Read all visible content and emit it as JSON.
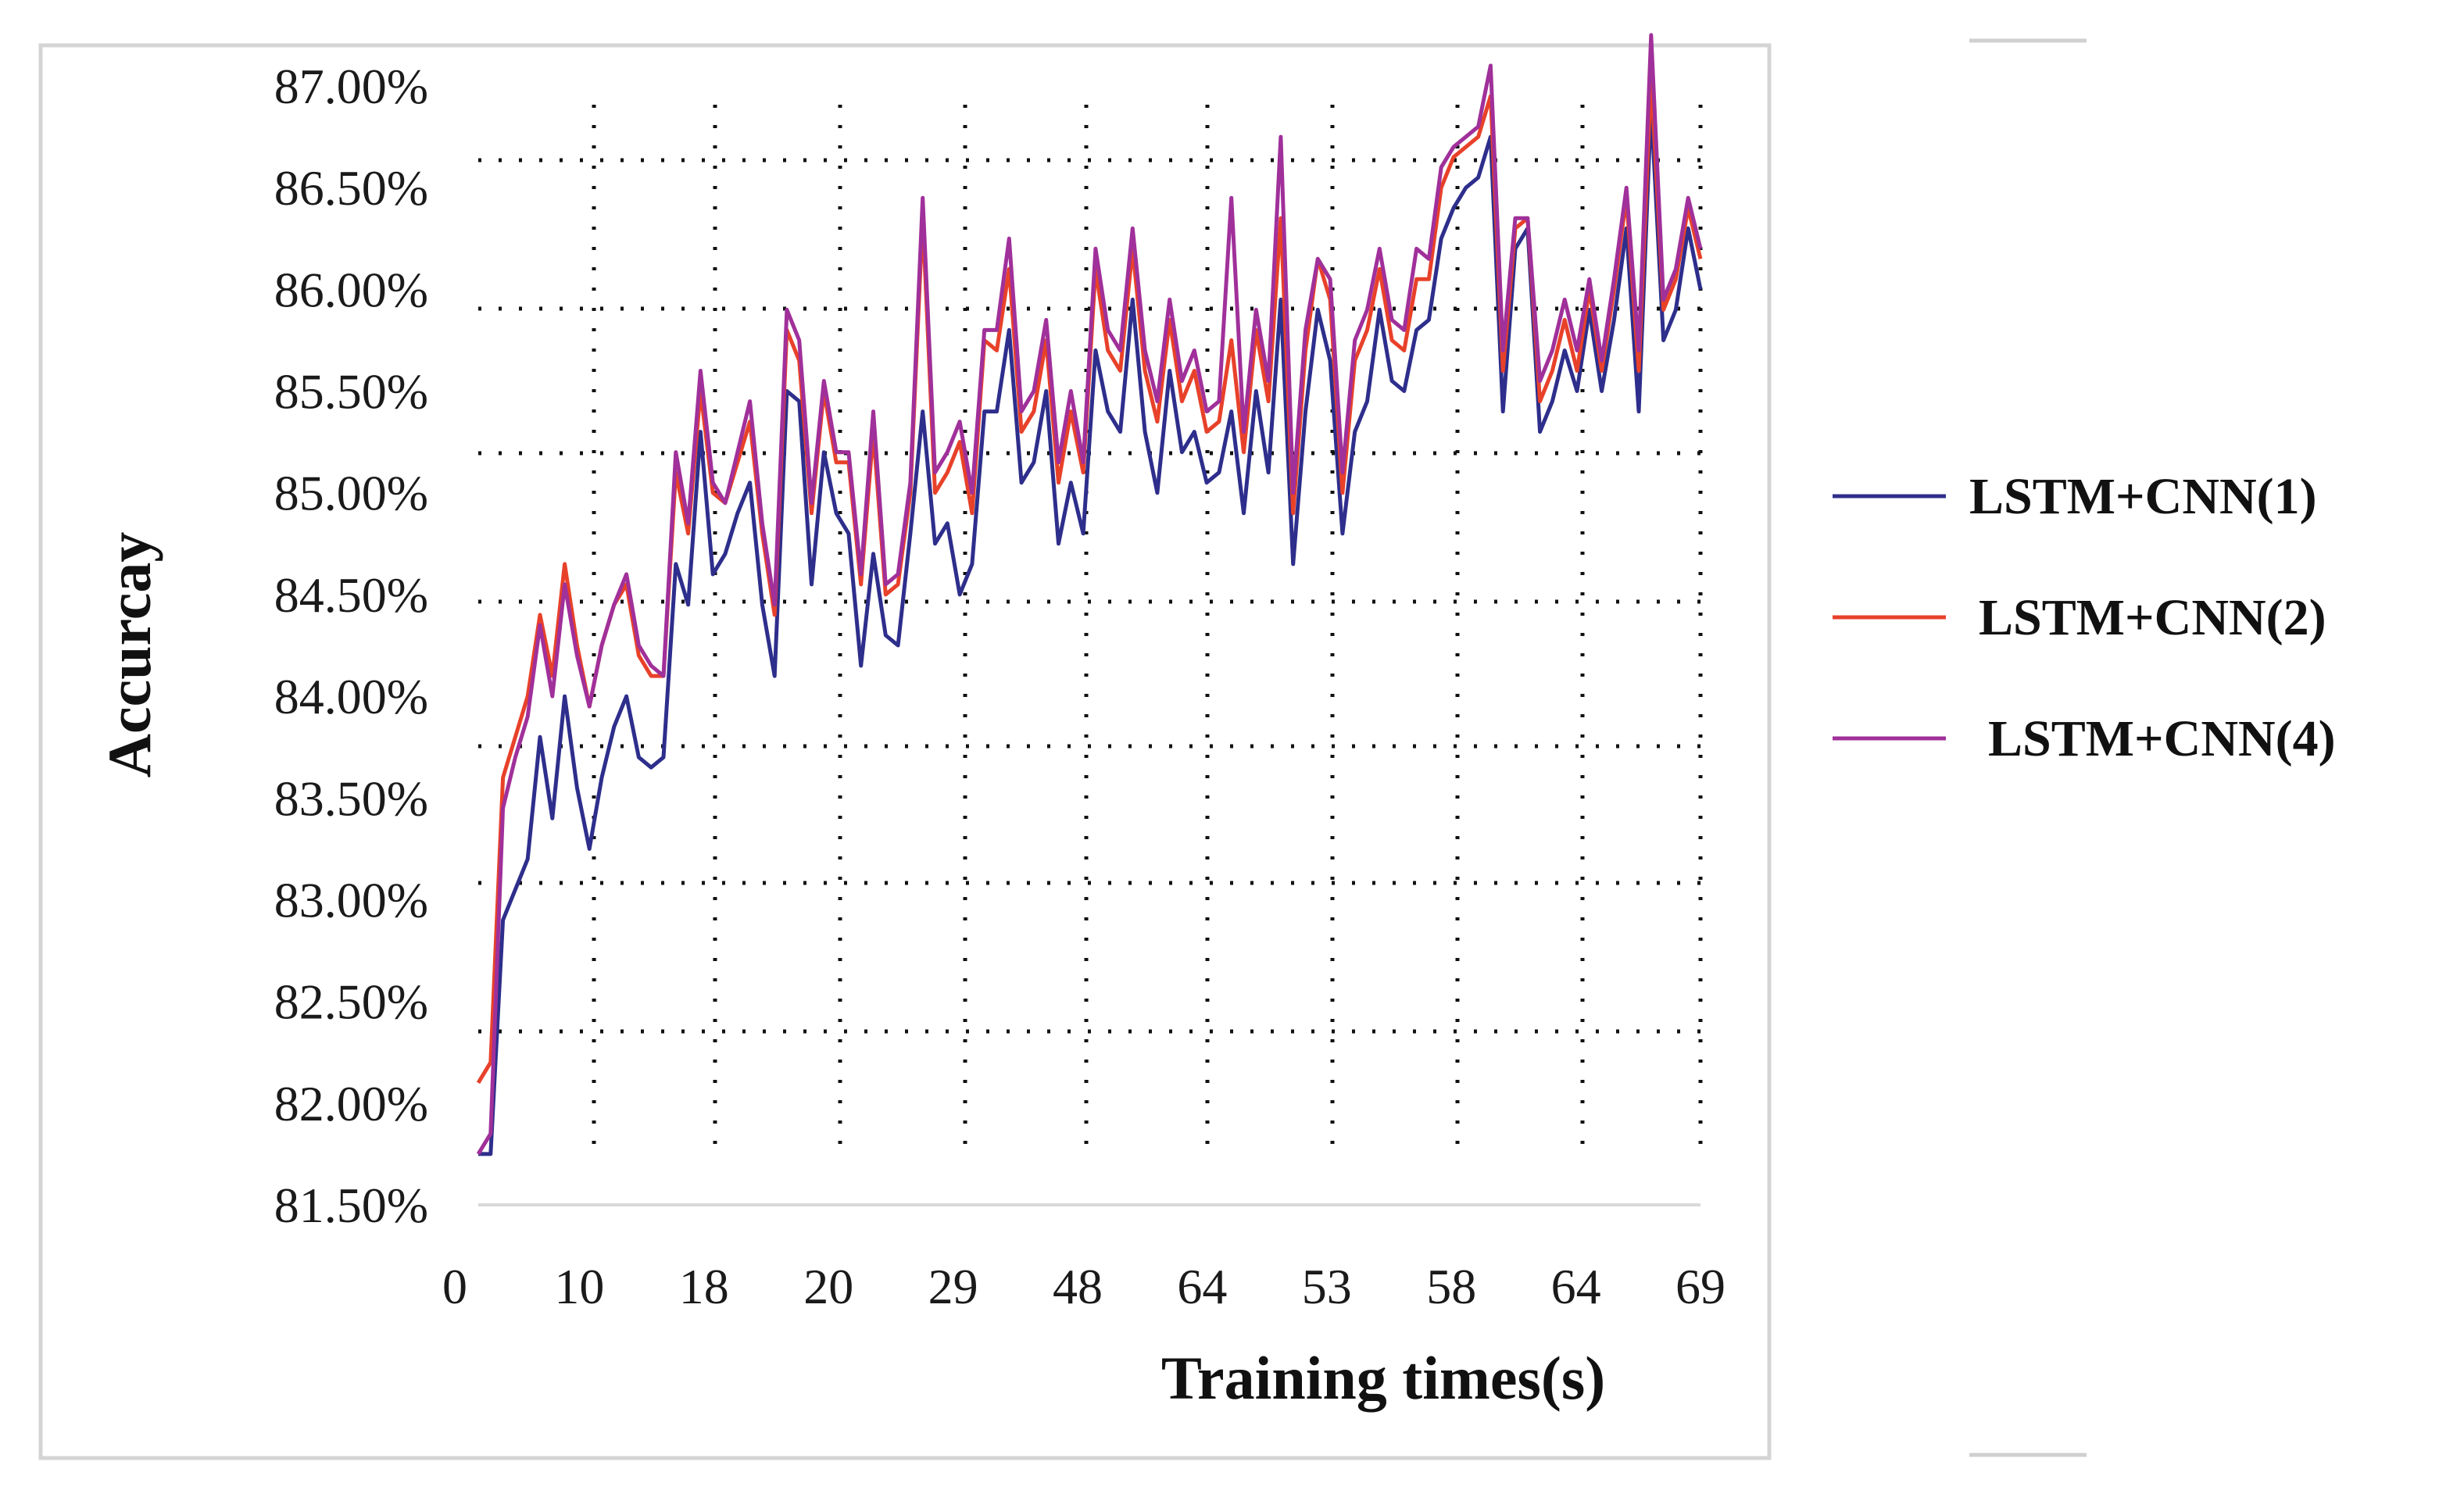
{
  "chart_data": {
    "type": "line",
    "title": "",
    "xlabel": "Training times(s)",
    "ylabel": "Accurcay",
    "ylim": [
      81.5,
      87.0
    ],
    "y_ticks": [
      "87.00%",
      "86.50%",
      "86.00%",
      "85.50%",
      "85.00%",
      "84.50%",
      "84.00%",
      "83.50%",
      "83.00%",
      "82.50%",
      "82.00%",
      "81.50%"
    ],
    "x_tick_labels": [
      "0",
      "10",
      "18",
      "20",
      "29",
      "48",
      "64",
      "53",
      "58",
      "64",
      "69"
    ],
    "grid": true,
    "legend_position": "right",
    "x": [
      0,
      1,
      2,
      3,
      4,
      5,
      6,
      7,
      8,
      9,
      10,
      11,
      12,
      13,
      14,
      15,
      16,
      17,
      18,
      19,
      20,
      21,
      22,
      23,
      24,
      25,
      26,
      27,
      28,
      29,
      30,
      31,
      32,
      33,
      34,
      35,
      36,
      37,
      38,
      39,
      40,
      41,
      42,
      43,
      44,
      45,
      46,
      47,
      48,
      49,
      50,
      51,
      52,
      53,
      54,
      55,
      56,
      57,
      58,
      59,
      60,
      61,
      62,
      63,
      64,
      65,
      66,
      67,
      68,
      69,
      70,
      71,
      72,
      73,
      74,
      75,
      76,
      77,
      78,
      79,
      80,
      81,
      82,
      83,
      84,
      85,
      86,
      87,
      88,
      89,
      90,
      91,
      92,
      93,
      94,
      95,
      96,
      97,
      98,
      99
    ],
    "series": [
      {
        "name": "LSTM+CNN(1)",
        "color": "#2e2e8c",
        "values": [
          81.75,
          81.75,
          82.9,
          83.05,
          83.2,
          83.8,
          83.4,
          84.0,
          83.55,
          83.25,
          83.6,
          83.85,
          84.0,
          83.7,
          83.65,
          83.7,
          84.65,
          84.45,
          85.3,
          84.6,
          84.7,
          84.9,
          85.05,
          84.45,
          84.1,
          85.5,
          85.45,
          84.55,
          85.2,
          84.9,
          84.8,
          84.15,
          84.7,
          84.3,
          84.25,
          84.8,
          85.4,
          84.75,
          84.85,
          84.5,
          84.65,
          85.4,
          85.4,
          85.8,
          85.05,
          85.15,
          85.5,
          84.75,
          85.05,
          84.8,
          85.7,
          85.4,
          85.3,
          85.95,
          85.3,
          85.0,
          85.6,
          85.2,
          85.3,
          85.05,
          85.1,
          85.4,
          84.9,
          85.5,
          85.1,
          85.95,
          84.65,
          85.4,
          85.9,
          85.65,
          84.8,
          85.3,
          85.45,
          85.9,
          85.55,
          85.5,
          85.8,
          85.85,
          86.25,
          86.4,
          86.5,
          86.55,
          86.75,
          85.4,
          86.2,
          86.3,
          85.3,
          85.45,
          85.7,
          85.5,
          85.9,
          85.5,
          85.85,
          86.3,
          85.4,
          86.9,
          85.75,
          85.9,
          86.3,
          86.0
        ]
      },
      {
        "name": "LSTM+CNN(2)",
        "color": "#e8412a",
        "values": [
          82.1,
          82.2,
          83.6,
          83.8,
          84.0,
          84.4,
          84.1,
          84.65,
          84.25,
          83.95,
          84.25,
          84.45,
          84.55,
          84.2,
          84.1,
          84.1,
          85.1,
          84.8,
          85.5,
          85.0,
          84.95,
          85.15,
          85.35,
          84.8,
          84.4,
          85.8,
          85.65,
          84.9,
          85.5,
          85.15,
          85.15,
          84.55,
          85.3,
          84.5,
          84.55,
          85.0,
          86.35,
          85.0,
          85.1,
          85.25,
          84.9,
          85.75,
          85.7,
          86.1,
          85.3,
          85.4,
          85.75,
          85.05,
          85.4,
          85.1,
          86.1,
          85.7,
          85.6,
          86.2,
          85.6,
          85.35,
          85.85,
          85.45,
          85.6,
          85.3,
          85.35,
          85.75,
          85.2,
          85.8,
          85.45,
          86.35,
          84.9,
          85.7,
          86.15,
          85.95,
          85.0,
          85.65,
          85.8,
          86.1,
          85.75,
          85.7,
          86.05,
          86.05,
          86.5,
          86.65,
          86.7,
          86.75,
          86.95,
          85.6,
          86.3,
          86.35,
          85.45,
          85.6,
          85.85,
          85.6,
          86.0,
          85.6,
          86.0,
          86.45,
          85.6,
          87.05,
          85.9,
          86.05,
          86.4,
          86.15
        ]
      },
      {
        "name": "LSTM+CNN(4)",
        "color": "#a0309a",
        "values": [
          81.75,
          81.85,
          83.45,
          83.7,
          83.9,
          84.35,
          84.0,
          84.55,
          84.2,
          83.95,
          84.25,
          84.45,
          84.6,
          84.25,
          84.15,
          84.1,
          85.2,
          84.85,
          85.6,
          85.05,
          84.95,
          85.2,
          85.45,
          84.85,
          84.45,
          85.9,
          85.75,
          84.95,
          85.55,
          85.2,
          85.2,
          84.6,
          85.4,
          84.55,
          84.6,
          85.05,
          86.45,
          85.1,
          85.2,
          85.35,
          85.0,
          85.8,
          85.8,
          86.25,
          85.4,
          85.5,
          85.85,
          85.15,
          85.5,
          85.15,
          86.2,
          85.8,
          85.7,
          86.3,
          85.7,
          85.45,
          85.95,
          85.55,
          85.7,
          85.4,
          85.45,
          86.45,
          85.3,
          85.9,
          85.55,
          86.75,
          85.0,
          85.8,
          86.15,
          86.05,
          85.1,
          85.75,
          85.9,
          86.2,
          85.85,
          85.8,
          86.2,
          86.15,
          86.6,
          86.7,
          86.75,
          86.8,
          87.1,
          85.7,
          86.35,
          86.35,
          85.55,
          85.7,
          85.95,
          85.7,
          86.05,
          85.65,
          86.05,
          86.5,
          85.7,
          87.25,
          85.95,
          86.1,
          86.45,
          86.2
        ]
      }
    ]
  }
}
